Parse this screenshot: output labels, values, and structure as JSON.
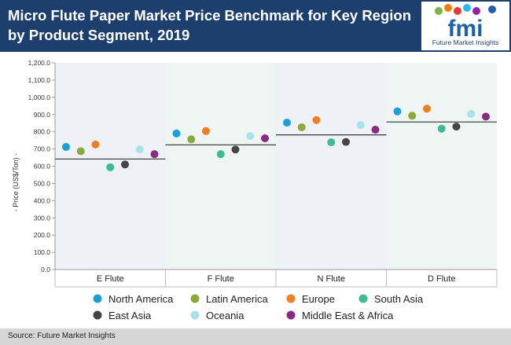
{
  "header": {
    "title": "Micro Flute Paper Market Price Benchmark for Key Region by Product Segment, 2019"
  },
  "logo": {
    "letters": "fmi",
    "caption": "Future Market Insights",
    "colors": [
      "#1d5fa8",
      "#7cb342",
      "#f57c00",
      "#e53935",
      "#29b6f6",
      "#8e24aa"
    ]
  },
  "source": {
    "text": "Source: Future Market Insights"
  },
  "chart_data": {
    "type": "scatter",
    "title": "",
    "xlabel": "",
    "ylabel": "- Price (US$/Ton) -",
    "ylim": [
      0,
      1200
    ],
    "yticks": [
      0,
      100,
      200,
      300,
      400,
      500,
      600,
      700,
      800,
      900,
      1000,
      1100,
      1200
    ],
    "ytick_labels": [
      "0.0",
      "100.0",
      "200.0",
      "300.0",
      "400.0",
      "500.0",
      "600.0",
      "700.0",
      "800.0",
      "900.0",
      "1,000.0",
      "1,100.0",
      "1,200.0"
    ],
    "grid": false,
    "legend_position": "bottom",
    "categories": [
      "E Flute",
      "F Flute",
      "N Flute",
      "D Flute"
    ],
    "band_colors": [
      "#eef1f6",
      "#eef5f2"
    ],
    "benchmark_line_color": "#333333",
    "benchmark": [
      642,
      724,
      782,
      857
    ],
    "series": [
      {
        "name": "North America",
        "color": "#1a9fd8",
        "values": [
          712,
          790,
          853,
          918
        ]
      },
      {
        "name": "Latin America",
        "color": "#8aaa3a",
        "values": [
          687,
          756,
          826,
          893
        ]
      },
      {
        "name": "Europe",
        "color": "#f07f22",
        "values": [
          726,
          804,
          868,
          934
        ]
      },
      {
        "name": "South Asia",
        "color": "#3dbb93",
        "values": [
          594,
          670,
          739,
          818
        ]
      },
      {
        "name": "East Asia",
        "color": "#454545",
        "values": [
          610,
          697,
          741,
          830
        ]
      },
      {
        "name": "Oceania",
        "color": "#a8e2ea",
        "values": [
          698,
          775,
          839,
          904
        ]
      },
      {
        "name": "Middle East & Africa",
        "color": "#8b2a85",
        "values": [
          670,
          762,
          812,
          888
        ]
      }
    ]
  }
}
